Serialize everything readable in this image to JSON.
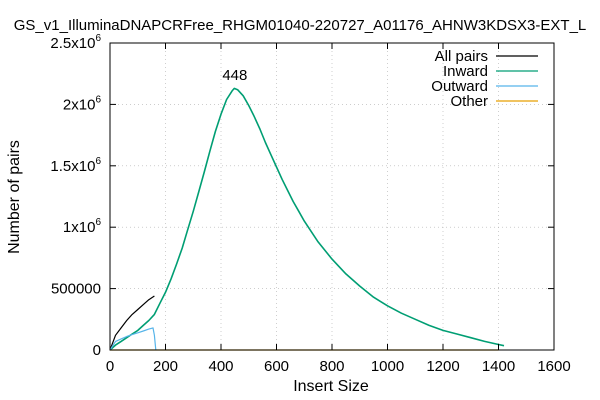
{
  "chart_data": {
    "type": "line",
    "title": "GS_v1_IlluminaDNAPCRFree_RHGM01040-220727_A01176_AHNW3KDSX3-EXT_L",
    "xlabel": "Insert Size",
    "ylabel": "Number of pairs",
    "xlim": [
      0,
      1600
    ],
    "ylim": [
      0,
      2500000
    ],
    "grid": true,
    "legend_position": "top-right",
    "x_ticks": [
      {
        "value": 0,
        "label": "0"
      },
      {
        "value": 200,
        "label": "200"
      },
      {
        "value": 400,
        "label": "400"
      },
      {
        "value": 600,
        "label": "600"
      },
      {
        "value": 800,
        "label": "800"
      },
      {
        "value": 1000,
        "label": "1000"
      },
      {
        "value": 1200,
        "label": "1200"
      },
      {
        "value": 1400,
        "label": "1400"
      },
      {
        "value": 1600,
        "label": "1600"
      }
    ],
    "y_ticks": [
      {
        "value": 0,
        "base": "0",
        "sup": ""
      },
      {
        "value": 500000,
        "base": "500000",
        "sup": ""
      },
      {
        "value": 1000000,
        "base": "1x10",
        "sup": "6"
      },
      {
        "value": 1500000,
        "base": "1.5x10",
        "sup": "6"
      },
      {
        "value": 2000000,
        "base": "2x10",
        "sup": "6"
      },
      {
        "value": 2500000,
        "base": "2.5x10",
        "sup": "6"
      }
    ],
    "annotation": {
      "label": "448",
      "x": 448,
      "y": 2150000
    },
    "series": [
      {
        "name": "All pairs",
        "color": "#000000",
        "x": [
          0,
          20,
          40,
          60,
          80,
          100,
          120,
          140,
          160
        ],
        "y": [
          0,
          120000,
          180000,
          240000,
          290000,
          330000,
          370000,
          410000,
          440000
        ]
      },
      {
        "name": "Inward",
        "color": "#009e73",
        "x": [
          0,
          20,
          40,
          60,
          80,
          100,
          120,
          140,
          160,
          180,
          200,
          220,
          240,
          260,
          280,
          300,
          320,
          340,
          360,
          380,
          400,
          420,
          440,
          448,
          460,
          480,
          500,
          520,
          540,
          560,
          580,
          600,
          620,
          640,
          660,
          680,
          700,
          750,
          800,
          850,
          900,
          950,
          1000,
          1050,
          1100,
          1150,
          1200,
          1250,
          1300,
          1350,
          1400,
          1420
        ],
        "y": [
          0,
          40000,
          70000,
          100000,
          130000,
          160000,
          200000,
          240000,
          290000,
          380000,
          470000,
          580000,
          700000,
          830000,
          980000,
          1130000,
          1290000,
          1450000,
          1620000,
          1780000,
          1920000,
          2040000,
          2110000,
          2130000,
          2120000,
          2070000,
          1990000,
          1900000,
          1800000,
          1690000,
          1590000,
          1490000,
          1390000,
          1300000,
          1210000,
          1130000,
          1050000,
          880000,
          740000,
          620000,
          520000,
          430000,
          360000,
          300000,
          250000,
          200000,
          160000,
          130000,
          100000,
          70000,
          45000,
          35000
        ]
      },
      {
        "name": "Outward",
        "color": "#56b4e9",
        "x": [
          0,
          20,
          40,
          60,
          80,
          100,
          120,
          140,
          155,
          160,
          165
        ],
        "y": [
          0,
          70000,
          90000,
          110000,
          125000,
          140000,
          155000,
          170000,
          180000,
          120000,
          0
        ]
      },
      {
        "name": "Other",
        "color": "#e69f00",
        "x": [
          0,
          200,
          400,
          600,
          800,
          1000,
          1200,
          1400
        ],
        "y": [
          0,
          0,
          0,
          0,
          0,
          0,
          0,
          0
        ]
      }
    ]
  }
}
